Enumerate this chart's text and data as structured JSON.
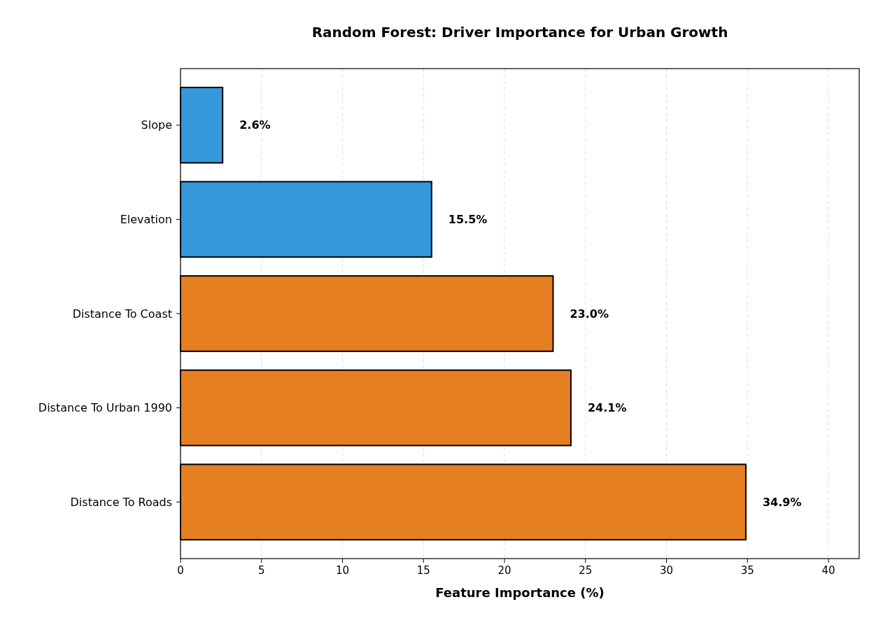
{
  "chart_data": {
    "type": "bar",
    "orientation": "horizontal",
    "title": "Random Forest: Driver Importance for Urban Growth",
    "xlabel": "Feature Importance (%)",
    "categories": [
      "Slope",
      "Elevation",
      "Distance To Coast",
      "Distance To Urban 1990",
      "Distance To Roads"
    ],
    "values": [
      2.6,
      15.5,
      23.0,
      24.1,
      34.9
    ],
    "colors": [
      "#3498db",
      "#3498db",
      "#e67e22",
      "#e67e22",
      "#e67e22"
    ],
    "value_labels": [
      "2.6%",
      "15.5%",
      "23.0%",
      "24.1%",
      "34.9%"
    ],
    "xlim": [
      0,
      41.9
    ],
    "xticks": [
      0,
      5,
      10,
      15,
      20,
      25,
      30,
      35,
      40
    ],
    "grid": "x"
  }
}
